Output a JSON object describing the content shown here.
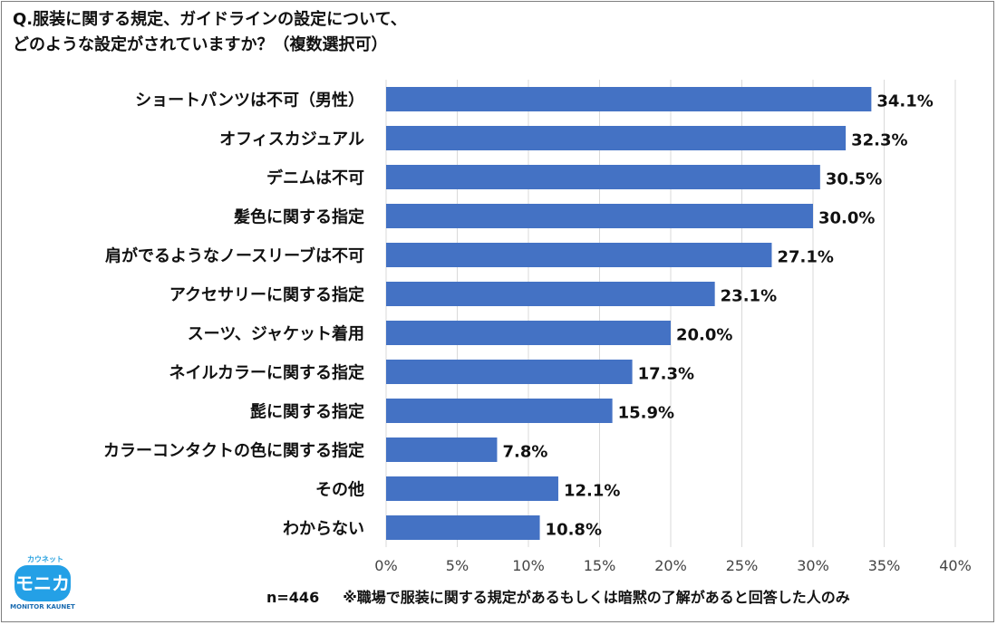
{
  "title_lines": [
    "Q.服装に関する規定、ガイドラインの設定について、",
    "どのような設定がされていますか？（複数選択可）"
  ],
  "footer": {
    "n_label": "n=446",
    "note": "※職場で服装に関する規定があるもしくは暗黙の了解があると回答した人のみ"
  },
  "logo": {
    "kana_top": "カウネット",
    "main": "モニカ",
    "sub": "MONITOR KAUNET"
  },
  "colors": {
    "bar": "#4472c4",
    "grid": "#d9d9d9",
    "text": "#111111"
  },
  "chart_data": {
    "type": "bar",
    "orientation": "horizontal",
    "categories": [
      "ショートパンツは不可（男性）",
      "オフィスカジュアル",
      "デニムは不可",
      "髪色に関する指定",
      "肩がでるようなノースリーブは不可",
      "アクセサリーに関する指定",
      "スーツ、ジャケット着用",
      "ネイルカラーに関する指定",
      "髭に関する指定",
      "カラーコンタクトの色に関する指定",
      "その他",
      "わからない"
    ],
    "values": [
      34.1,
      32.3,
      30.5,
      30.0,
      27.1,
      23.1,
      20.0,
      17.3,
      15.9,
      7.8,
      12.1,
      10.8
    ],
    "value_labels": [
      "34.1%",
      "32.3%",
      "30.5%",
      "30.0%",
      "27.1%",
      "23.1%",
      "20.0%",
      "17.3%",
      "15.9%",
      "7.8%",
      "12.1%",
      "10.8%"
    ],
    "xlim": [
      0,
      40
    ],
    "xticks": [
      "0%",
      "5%",
      "10%",
      "15%",
      "20%",
      "25%",
      "30%",
      "35%",
      "40%"
    ],
    "grid": true
  }
}
